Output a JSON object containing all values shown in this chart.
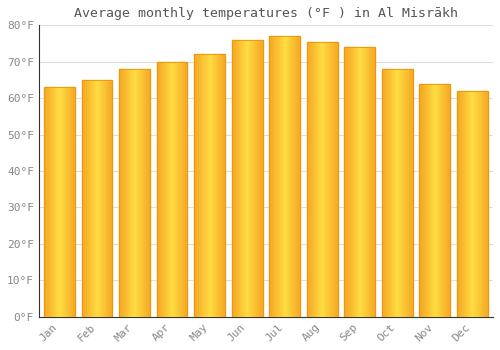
{
  "title": "Average monthly temperatures (°F ) in Al Misrākh",
  "months": [
    "Jan",
    "Feb",
    "Mar",
    "Apr",
    "May",
    "Jun",
    "Jul",
    "Aug",
    "Sep",
    "Oct",
    "Nov",
    "Dec"
  ],
  "values": [
    63,
    65,
    68,
    70,
    72,
    76,
    77,
    75.5,
    74,
    68,
    64,
    62
  ],
  "bar_color_left": "#F5A623",
  "bar_color_center": "#FDD835",
  "bar_color_right": "#F5A623",
  "ylim": [
    0,
    80
  ],
  "yticks": [
    0,
    10,
    20,
    30,
    40,
    50,
    60,
    70,
    80
  ],
  "ytick_labels": [
    "0°F",
    "10°F",
    "20°F",
    "30°F",
    "40°F",
    "50°F",
    "60°F",
    "70°F",
    "80°F"
  ],
  "background_color": "#ffffff",
  "grid_color": "#dddddd",
  "title_fontsize": 9.5,
  "tick_fontsize": 8,
  "font_family": "monospace"
}
